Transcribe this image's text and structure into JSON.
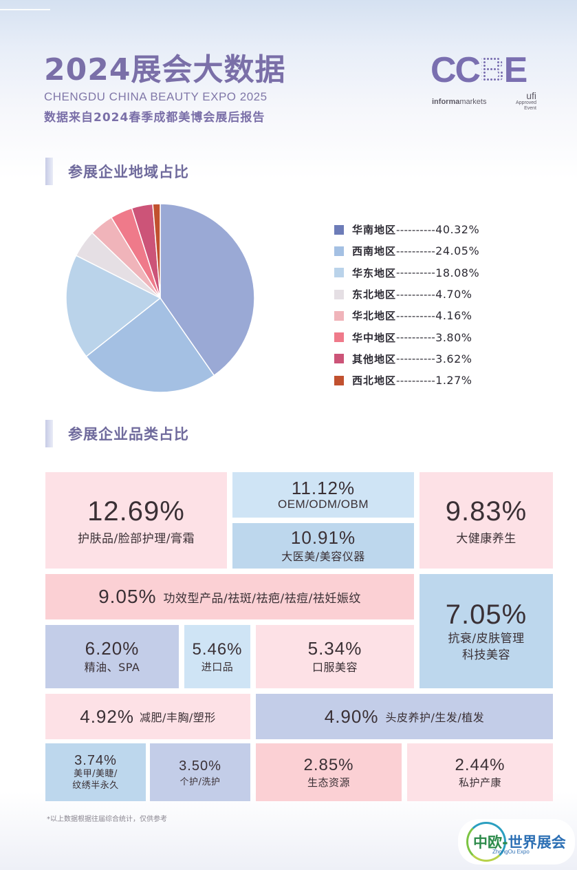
{
  "header": {
    "title": "2024展会大数据",
    "subtitle_en": "CHENGDU CHINA BEAUTY EXPO 2025",
    "subtitle_cn": "数据来自2024春季成都美博会展后报告",
    "logo": {
      "text_solid": "CC",
      "text_dotted": "B",
      "text_end": "E",
      "informa_bold": "informa",
      "informa_light": "markets",
      "ufi": "ufi",
      "ufi_line1": "Approved",
      "ufi_line2": "Event"
    }
  },
  "sections": {
    "region": {
      "title": "参展企业地域占比"
    },
    "category": {
      "title": "参展企业品类占比"
    }
  },
  "legend": {
    "dash": "----------",
    "items": [
      {
        "label": "华南地区",
        "value": "40.32%",
        "color": "#6d7cb8"
      },
      {
        "label": "西南地区",
        "value": "24.05%",
        "color": "#a4c0e3"
      },
      {
        "label": "华东地区",
        "value": "18.08%",
        "color": "#bad3ea"
      },
      {
        "label": "东北地区",
        "value": "4.70%",
        "color": "#e5dfe4"
      },
      {
        "label": "华北地区",
        "value": "4.16%",
        "color": "#f0b4ba"
      },
      {
        "label": "华中地区",
        "value": "3.80%",
        "color": "#ef7a8a"
      },
      {
        "label": "其他地区",
        "value": "3.62%",
        "color": "#cc5478"
      },
      {
        "label": "西北地区",
        "value": "1.27%",
        "color": "#c1512f"
      }
    ]
  },
  "tiles": {
    "t1": {
      "pct": "12.69%",
      "label": "护肤品/脸部护理/膏霜"
    },
    "t2": {
      "pct": "11.12%",
      "label": "OEM/ODM/OBM"
    },
    "t3": {
      "pct": "10.91%",
      "label": "大医美/美容仪器"
    },
    "t4": {
      "pct": "9.83%",
      "label": "大健康养生"
    },
    "t5": {
      "pct": "9.05%",
      "label": "功效型产品/祛斑/祛疤/祛痘/祛妊娠纹"
    },
    "t6": {
      "pct": "7.05%",
      "label1": "抗衰/皮肤管理",
      "label2": "科技美容"
    },
    "t7": {
      "pct": "6.20%",
      "label": "精油、SPA"
    },
    "t8": {
      "pct": "5.46%",
      "label": "进口品"
    },
    "t9": {
      "pct": "5.34%",
      "label": "口服美容"
    },
    "t10": {
      "pct": "4.92%",
      "label": "减肥/丰胸/塑形"
    },
    "t11": {
      "pct": "4.90%",
      "label": "头皮养护/生发/植发"
    },
    "t12": {
      "pct": "3.74%",
      "label1": "美甲/美睫/",
      "label2": "纹绣半永久"
    },
    "t13": {
      "pct": "3.50%",
      "label": "个护/洗护"
    },
    "t14": {
      "pct": "2.85%",
      "label": "生态资源"
    },
    "t15": {
      "pct": "2.44%",
      "label": "私护产康"
    }
  },
  "footnote": "*以上数据根据往届综合统计，仅供参考",
  "partner": {
    "title_a": "中欧-",
    "title_b": "世界展会",
    "sub": "ZhongOu Expo"
  },
  "chart_data": [
    {
      "type": "pie",
      "title": "参展企业地域占比",
      "categories": [
        "华南地区",
        "西南地区",
        "华东地区",
        "东北地区",
        "华北地区",
        "华中地区",
        "其他地区",
        "西北地区"
      ],
      "values": [
        40.32,
        24.05,
        18.08,
        4.7,
        4.16,
        3.8,
        3.62,
        1.27
      ],
      "colors": [
        "#9aa9d5",
        "#a4c0e3",
        "#bad3ea",
        "#e5dfe4",
        "#f0b4ba",
        "#ef7a8a",
        "#cc5478",
        "#c1512f"
      ],
      "legend_position": "right",
      "start_angle": "12 o'clock, clockwise"
    },
    {
      "type": "treemap",
      "title": "参展企业品类占比",
      "categories": [
        "护肤品/脸部护理/膏霜",
        "OEM/ODM/OBM",
        "大医美/美容仪器",
        "大健康养生",
        "功效型产品/祛斑/祛疤/祛痘/祛妊娠纹",
        "抗衰/皮肤管理 科技美容",
        "精油、SPA",
        "进口品",
        "口服美容",
        "减肥/丰胸/塑形",
        "头皮养护/生发/植发",
        "美甲/美睫/纹绣半永久",
        "个护/洗护",
        "生态资源",
        "私护产康"
      ],
      "values": [
        12.69,
        11.12,
        10.91,
        9.83,
        9.05,
        7.05,
        6.2,
        5.46,
        5.34,
        4.92,
        4.9,
        3.74,
        3.5,
        2.85,
        2.44
      ],
      "unit": "%"
    }
  ]
}
